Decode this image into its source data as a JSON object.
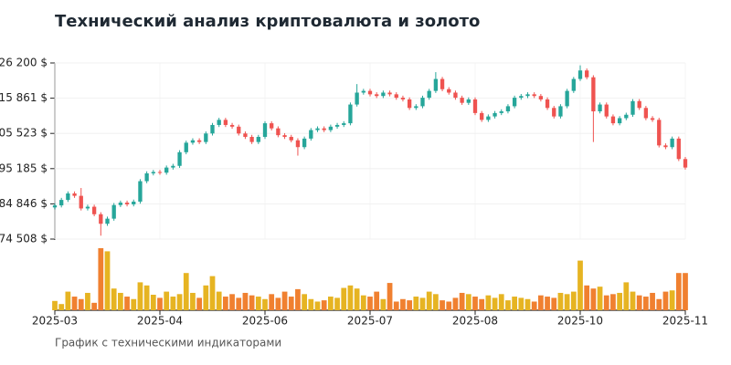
{
  "chart_data": {
    "type": "candlestick",
    "title": "Технический анализ криптовалюта и золото",
    "subtitle": "График с техническими индикаторами",
    "up_color": "#26a69a",
    "down_color": "#ef5350",
    "volume_up_color": "#e6b422",
    "volume_down_color": "#f08030",
    "grid": true,
    "ylim": [
      74508,
      126200
    ],
    "yticks": [
      {
        "value": 126200,
        "label": "126 200 $"
      },
      {
        "value": 115861,
        "label": "115 861 $"
      },
      {
        "value": 105523,
        "label": "105 523 $"
      },
      {
        "value": 95185,
        "label": "95 185 $"
      },
      {
        "value": 84846,
        "label": "84 846 $"
      },
      {
        "value": 74508,
        "label": "74 508 $"
      }
    ],
    "xlim": [
      0,
      96
    ],
    "xticks": [
      {
        "value": 0,
        "label": "2025-03"
      },
      {
        "value": 16,
        "label": "2025-04"
      },
      {
        "value": 32,
        "label": "2025-06"
      },
      {
        "value": 48,
        "label": "2025-07"
      },
      {
        "value": 64,
        "label": "2025-08"
      },
      {
        "value": 80,
        "label": "2025-10"
      },
      {
        "value": 96,
        "label": "2025-11"
      }
    ],
    "open": [
      83800,
      84400,
      86000,
      87900,
      87200,
      83500,
      84000,
      81800,
      79000,
      80500,
      84500,
      85200,
      84700,
      85500,
      91500,
      93800,
      94200,
      94000,
      95500,
      96000,
      100000,
      102800,
      103500,
      103000,
      105500,
      108000,
      109500,
      108000,
      107500,
      105500,
      104500,
      103000,
      104500,
      108500,
      107000,
      105000,
      104500,
      103500,
      101500,
      104000,
      106500,
      107000,
      106500,
      107500,
      108000,
      108500,
      114000,
      117500,
      118000,
      117000,
      116500,
      117500,
      117000,
      116000,
      115500,
      113000,
      113500,
      116000,
      118000,
      121500,
      118500,
      117500,
      116000,
      114500,
      115500,
      111500,
      109500,
      110500,
      111500,
      112000,
      113500,
      116000,
      116500,
      117000,
      116500,
      115500,
      113000,
      110500,
      113500,
      118000,
      121500,
      124000,
      122000,
      112000,
      114000,
      110500,
      108500,
      110000,
      111000,
      115000,
      113000,
      110000,
      109500,
      102000,
      101500,
      104000,
      98000
    ],
    "high": [
      85000,
      86600,
      88500,
      88500,
      89500,
      84600,
      84600,
      82400,
      81100,
      85100,
      85800,
      85800,
      86100,
      92100,
      94400,
      94800,
      94800,
      96100,
      96600,
      100600,
      103400,
      104100,
      104100,
      106100,
      108600,
      110100,
      110100,
      108600,
      108100,
      106100,
      105100,
      105100,
      109100,
      109100,
      107600,
      105600,
      105100,
      104100,
      104600,
      107100,
      107600,
      107600,
      108100,
      108600,
      109100,
      114600,
      120000,
      118600,
      118600,
      117600,
      118100,
      118100,
      117600,
      116600,
      116100,
      114100,
      116600,
      118600,
      123500,
      122100,
      119100,
      118100,
      116600,
      116100,
      116100,
      112100,
      111100,
      112100,
      112600,
      114100,
      116600,
      117100,
      117600,
      117600,
      117100,
      116100,
      113600,
      114100,
      118600,
      122100,
      125500,
      124600,
      122600,
      114600,
      114600,
      111100,
      110600,
      111600,
      115600,
      115600,
      113600,
      110600,
      110100,
      102600,
      104600,
      104600,
      98600
    ],
    "low": [
      83200,
      83800,
      85400,
      86600,
      82900,
      82900,
      81200,
      75500,
      78400,
      79900,
      83900,
      84100,
      84100,
      84900,
      90900,
      93200,
      93400,
      93400,
      94900,
      95400,
      99400,
      102200,
      102400,
      102400,
      104900,
      107400,
      107400,
      106900,
      104900,
      103900,
      102400,
      102400,
      103900,
      106400,
      104400,
      103900,
      102900,
      99000,
      100900,
      103400,
      105900,
      105900,
      105900,
      106900,
      107400,
      107900,
      113400,
      116900,
      116400,
      115900,
      115900,
      116400,
      115400,
      114900,
      112400,
      112400,
      112900,
      115400,
      117400,
      117900,
      116900,
      115400,
      113900,
      113900,
      110900,
      108900,
      108900,
      109900,
      110900,
      111400,
      112900,
      115400,
      115900,
      115900,
      114900,
      112400,
      109900,
      109900,
      112900,
      117400,
      120900,
      121400,
      103000,
      111400,
      109900,
      107900,
      107900,
      109400,
      110400,
      112400,
      109400,
      108900,
      101400,
      100900,
      100900,
      97400,
      94900
    ],
    "close": [
      84400,
      86000,
      87900,
      87200,
      83500,
      84000,
      81800,
      79000,
      80500,
      84500,
      85200,
      84700,
      85500,
      91500,
      93800,
      94200,
      94000,
      95500,
      96000,
      100000,
      102800,
      103500,
      103000,
      105500,
      108000,
      109500,
      108000,
      107500,
      105500,
      104500,
      103000,
      104500,
      108500,
      107000,
      105000,
      104500,
      103500,
      101500,
      104000,
      106500,
      107000,
      106500,
      107500,
      108000,
      108500,
      114000,
      117500,
      118000,
      117000,
      116500,
      117500,
      117000,
      116000,
      115500,
      113000,
      113500,
      116000,
      118000,
      121500,
      118500,
      117500,
      116000,
      114500,
      115500,
      111500,
      109500,
      110500,
      111500,
      112000,
      113500,
      116000,
      116500,
      117000,
      116500,
      115500,
      113000,
      110500,
      113500,
      118000,
      121500,
      124000,
      122000,
      112000,
      114000,
      110500,
      108500,
      110000,
      111000,
      115000,
      113000,
      110000,
      109500,
      102000,
      101500,
      104000,
      98000,
      95500
    ],
    "volume": [
      15,
      10,
      30,
      22,
      18,
      28,
      12,
      100,
      95,
      35,
      28,
      22,
      18,
      45,
      40,
      25,
      20,
      30,
      22,
      26,
      60,
      28,
      20,
      40,
      55,
      30,
      22,
      26,
      20,
      28,
      24,
      22,
      18,
      26,
      20,
      30,
      22,
      34,
      26,
      18,
      14,
      16,
      22,
      20,
      36,
      40,
      35,
      24,
      22,
      30,
      18,
      44,
      14,
      18,
      16,
      22,
      20,
      30,
      26,
      16,
      14,
      20,
      28,
      26,
      22,
      18,
      24,
      20,
      26,
      16,
      22,
      20,
      18,
      14,
      24,
      22,
      20,
      28,
      26,
      30,
      80,
      40,
      35,
      38,
      24,
      26,
      28,
      45,
      30,
      24,
      22,
      28,
      18,
      30,
      32,
      60,
      60
    ]
  }
}
